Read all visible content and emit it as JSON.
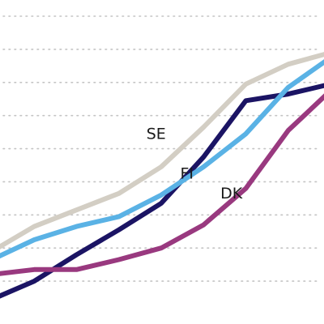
{
  "chart_data": {
    "type": "line",
    "grid": true,
    "grid_style": "dotted horizontal",
    "x": [
      0,
      1,
      2,
      3,
      4,
      5,
      6,
      7,
      8
    ],
    "ylim": [
      0,
      9
    ],
    "series": [
      {
        "name": "SE",
        "color": "#d3cec4",
        "values": [
          1.9,
          2.65,
          3.15,
          3.65,
          4.45,
          5.65,
          6.95,
          7.55,
          7.9
        ]
      },
      {
        "name": "FI",
        "color": "#1b1464",
        "values": [
          0.45,
          1.0,
          1.8,
          2.55,
          3.35,
          4.75,
          6.45,
          6.65,
          6.95
        ]
      },
      {
        "name": "DK",
        "color": "#99397f",
        "values": [
          1.2,
          1.35,
          1.35,
          1.65,
          2.0,
          2.7,
          3.8,
          5.55,
          6.75
        ]
      },
      {
        "name": "",
        "color": "#5ab2e5",
        "values": [
          1.65,
          2.25,
          2.65,
          2.95,
          3.6,
          4.45,
          5.45,
          6.85,
          7.75
        ]
      }
    ],
    "labels": [
      {
        "series": "SE",
        "text": "SE",
        "x": 3.65,
        "y": 5.3
      },
      {
        "series": "FI",
        "text": "FI",
        "x": 4.45,
        "y": 4.1
      },
      {
        "series": "DK",
        "text": "DK",
        "x": 5.4,
        "y": 3.5
      }
    ]
  }
}
